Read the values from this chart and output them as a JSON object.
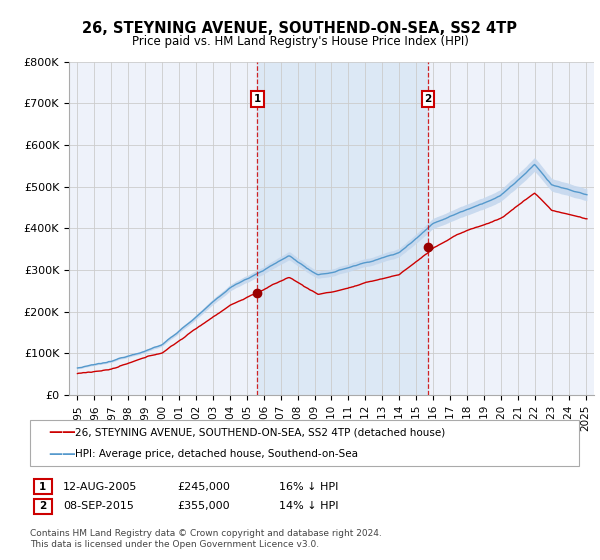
{
  "title": "26, STEYNING AVENUE, SOUTHEND-ON-SEA, SS2 4TP",
  "subtitle": "Price paid vs. HM Land Registry's House Price Index (HPI)",
  "ylabel_ticks": [
    "£0",
    "£100K",
    "£200K",
    "£300K",
    "£400K",
    "£500K",
    "£600K",
    "£700K",
    "£800K"
  ],
  "ytick_vals": [
    0,
    100000,
    200000,
    300000,
    400000,
    500000,
    600000,
    700000,
    800000
  ],
  "ylim": [
    0,
    800000
  ],
  "xlim_start": 1994.5,
  "xlim_end": 2025.5,
  "sale1_x": 2005.62,
  "sale1_y": 245000,
  "sale2_x": 2015.69,
  "sale2_y": 355000,
  "legend_line1": "26, STEYNING AVENUE, SOUTHEND-ON-SEA, SS2 4TP (detached house)",
  "legend_line2": "HPI: Average price, detached house, Southend-on-Sea",
  "table_row1": [
    "1",
    "12-AUG-2005",
    "£245,000",
    "16% ↓ HPI"
  ],
  "table_row2": [
    "2",
    "08-SEP-2015",
    "£355,000",
    "14% ↓ HPI"
  ],
  "footer": "Contains HM Land Registry data © Crown copyright and database right 2024.\nThis data is licensed under the Open Government Licence v3.0.",
  "bg_color": "#eef2fa",
  "shade_color": "#dce8f5",
  "grid_color": "#cccccc",
  "red_line_color": "#cc0000",
  "blue_line_color": "#5599cc",
  "title_fontsize": 10.5,
  "subtitle_fontsize": 8.5
}
